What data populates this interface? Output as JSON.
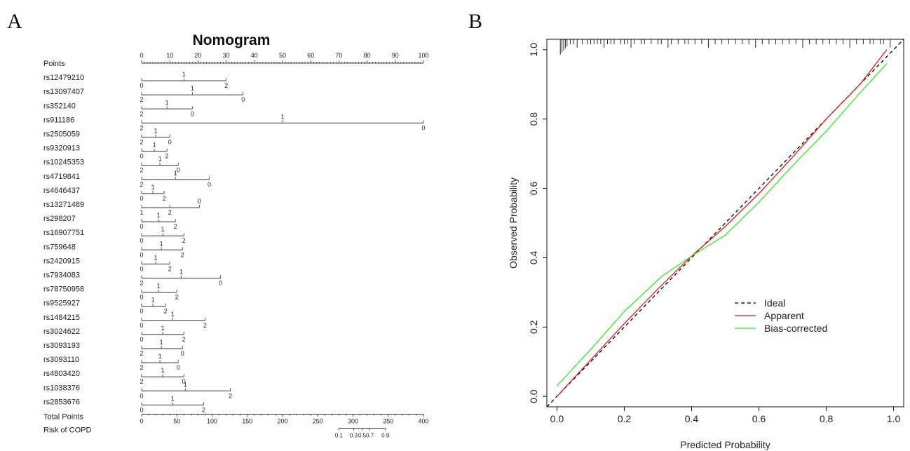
{
  "panel_a_label": "A",
  "panel_b_label": "B",
  "chart_data": [
    {
      "type": "nomogram",
      "title": "Nomogram",
      "points_axis": {
        "label": "Points",
        "ticks": [
          0,
          10,
          20,
          30,
          40,
          50,
          60,
          70,
          80,
          90,
          100
        ]
      },
      "variables": [
        {
          "name": "rs12479210",
          "levels": [
            {
              "label": "0",
              "points": 0
            },
            {
              "label": "1",
              "points": 15
            },
            {
              "label": "2",
              "points": 30
            }
          ]
        },
        {
          "name": "rs13097407",
          "levels": [
            {
              "label": "2",
              "points": 0
            },
            {
              "label": "1",
              "points": 18
            },
            {
              "label": "0",
              "points": 36
            }
          ]
        },
        {
          "name": "rs352140",
          "levels": [
            {
              "label": "2",
              "points": 0
            },
            {
              "label": "1",
              "points": 9
            },
            {
              "label": "0",
              "points": 18
            }
          ]
        },
        {
          "name": "rs911186",
          "levels": [
            {
              "label": "2",
              "points": 0
            },
            {
              "label": "1",
              "points": 50
            },
            {
              "label": "0",
              "points": 100
            }
          ]
        },
        {
          "name": "rs2505059",
          "levels": [
            {
              "label": "2",
              "points": 0
            },
            {
              "label": "1",
              "points": 5
            },
            {
              "label": "0",
              "points": 10
            }
          ]
        },
        {
          "name": "rs9320913",
          "levels": [
            {
              "label": "0",
              "points": 0
            },
            {
              "label": "1",
              "points": 4.5
            },
            {
              "label": "2",
              "points": 9
            }
          ]
        },
        {
          "name": "rs10245353",
          "levels": [
            {
              "label": "2",
              "points": 0
            },
            {
              "label": "1",
              "points": 6.5
            },
            {
              "label": "0",
              "points": 13
            }
          ]
        },
        {
          "name": "rs4719841",
          "levels": [
            {
              "label": "2",
              "points": 0
            },
            {
              "label": "1",
              "points": 12
            },
            {
              "label": "0",
              "points": 24
            }
          ]
        },
        {
          "name": "rs4646437",
          "levels": [
            {
              "label": "0",
              "points": 0
            },
            {
              "label": "1",
              "points": 4
            },
            {
              "label": "2",
              "points": 8
            }
          ]
        },
        {
          "name": "rs13271489",
          "levels": [
            {
              "label": "1",
              "points": 0
            },
            {
              "label": "0",
              "points": 20.5
            },
            {
              "label": "2",
              "points": 10
            }
          ]
        },
        {
          "name": "rs298207",
          "levels": [
            {
              "label": "0",
              "points": 0
            },
            {
              "label": "1",
              "points": 6
            },
            {
              "label": "2",
              "points": 12
            }
          ]
        },
        {
          "name": "rs16907751",
          "levels": [
            {
              "label": "0",
              "points": 0
            },
            {
              "label": "1",
              "points": 7.5
            },
            {
              "label": "2",
              "points": 15
            }
          ]
        },
        {
          "name": "rs759648",
          "levels": [
            {
              "label": "0",
              "points": 0
            },
            {
              "label": "1",
              "points": 7
            },
            {
              "label": "2",
              "points": 14.5
            }
          ]
        },
        {
          "name": "rs2420915",
          "levels": [
            {
              "label": "0",
              "points": 0
            },
            {
              "label": "1",
              "points": 5
            },
            {
              "label": "2",
              "points": 10
            }
          ]
        },
        {
          "name": "rs7934083",
          "levels": [
            {
              "label": "2",
              "points": 0
            },
            {
              "label": "1",
              "points": 14
            },
            {
              "label": "0",
              "points": 28
            }
          ]
        },
        {
          "name": "rs78750958",
          "levels": [
            {
              "label": "0",
              "points": 0
            },
            {
              "label": "1",
              "points": 6
            },
            {
              "label": "2",
              "points": 12.5
            }
          ]
        },
        {
          "name": "rs9525927",
          "levels": [
            {
              "label": "0",
              "points": 0
            },
            {
              "label": "1",
              "points": 4
            },
            {
              "label": "2",
              "points": 8.5
            }
          ]
        },
        {
          "name": "rs1484215",
          "levels": [
            {
              "label": "0",
              "points": 0
            },
            {
              "label": "1",
              "points": 11
            },
            {
              "label": "2",
              "points": 22.5
            }
          ]
        },
        {
          "name": "rs3024622",
          "levels": [
            {
              "label": "0",
              "points": 0
            },
            {
              "label": "1",
              "points": 7.5
            },
            {
              "label": "2",
              "points": 15
            }
          ]
        },
        {
          "name": "rs3093193",
          "levels": [
            {
              "label": "2",
              "points": 0
            },
            {
              "label": "1",
              "points": 7
            },
            {
              "label": "0",
              "points": 14.5
            }
          ]
        },
        {
          "name": "rs3093110",
          "levels": [
            {
              "label": "2",
              "points": 0
            },
            {
              "label": "1",
              "points": 6.5
            },
            {
              "label": "0",
              "points": 13
            }
          ]
        },
        {
          "name": "rs4803420",
          "levels": [
            {
              "label": "2",
              "points": 0
            },
            {
              "label": "1",
              "points": 7.5
            },
            {
              "label": "0",
              "points": 15
            }
          ]
        },
        {
          "name": "rs1038376",
          "levels": [
            {
              "label": "0",
              "points": 0
            },
            {
              "label": "1",
              "points": 15.5
            },
            {
              "label": "2",
              "points": 31.5
            }
          ]
        },
        {
          "name": "rs2853676",
          "levels": [
            {
              "label": "0",
              "points": 0
            },
            {
              "label": "1",
              "points": 11
            },
            {
              "label": "2",
              "points": 22
            }
          ]
        }
      ],
      "total_points": {
        "label": "Total Points",
        "ticks": [
          0,
          50,
          100,
          150,
          200,
          250,
          300,
          350,
          400
        ]
      },
      "risk": {
        "label": "Risk of COPD",
        "ticks": [
          {
            "label": "0.1",
            "total": 280
          },
          {
            "label": "0.3",
            "total": 301
          },
          {
            "label": "0.5",
            "total": 313
          },
          {
            "label": "0.7",
            "total": 324
          },
          {
            "label": "0.9",
            "total": 346
          }
        ]
      }
    },
    {
      "type": "line",
      "xlabel": "Predicted Probability",
      "ylabel": "Observed Probability",
      "xlim": [
        -0.03,
        1.03
      ],
      "ylim": [
        -0.03,
        1.03
      ],
      "xticks": [
        "0.0",
        "0.2",
        "0.4",
        "0.6",
        "0.8",
        "1.0"
      ],
      "yticks": [
        "0.0",
        "0.2",
        "0.4",
        "0.6",
        "0.8",
        "1.0"
      ],
      "legend_position": "lower-right",
      "series": [
        {
          "name": "Ideal",
          "color": "#000000",
          "dash": true,
          "x": [
            -0.03,
            1.03
          ],
          "y": [
            -0.03,
            1.03
          ]
        },
        {
          "name": "Apparent",
          "color": "#e41a1c",
          "dash": false,
          "x": [
            0.0,
            0.1,
            0.2,
            0.3,
            0.4,
            0.5,
            0.6,
            0.7,
            0.8,
            0.9,
            0.98
          ],
          "y": [
            0.0,
            0.105,
            0.21,
            0.31,
            0.405,
            0.49,
            0.585,
            0.69,
            0.8,
            0.9,
            1.0
          ]
        },
        {
          "name": "Bias-corrected",
          "color": "#33ee22",
          "dash": false,
          "x": [
            0.0,
            0.1,
            0.2,
            0.31,
            0.4,
            0.5,
            0.6,
            0.7,
            0.8,
            0.9,
            0.98
          ],
          "y": [
            0.03,
            0.135,
            0.245,
            0.345,
            0.405,
            0.465,
            0.56,
            0.665,
            0.765,
            0.875,
            0.96
          ]
        }
      ],
      "rug_x": [
        0.01,
        0.015,
        0.02,
        0.025,
        0.03,
        0.04,
        0.05,
        0.06,
        0.075,
        0.09,
        0.1,
        0.11,
        0.12,
        0.13,
        0.14,
        0.15,
        0.16,
        0.17,
        0.19,
        0.2,
        0.21,
        0.22,
        0.23,
        0.25,
        0.26,
        0.28,
        0.3,
        0.31,
        0.33,
        0.34,
        0.36,
        0.38,
        0.39,
        0.41,
        0.43,
        0.45,
        0.47,
        0.49,
        0.51,
        0.53,
        0.55,
        0.57,
        0.59,
        0.61,
        0.63,
        0.65,
        0.67,
        0.69,
        0.71,
        0.73,
        0.75,
        0.77,
        0.79,
        0.81,
        0.83,
        0.85,
        0.87,
        0.89,
        0.91,
        0.93,
        0.94,
        0.96,
        0.97,
        0.99
      ]
    }
  ]
}
